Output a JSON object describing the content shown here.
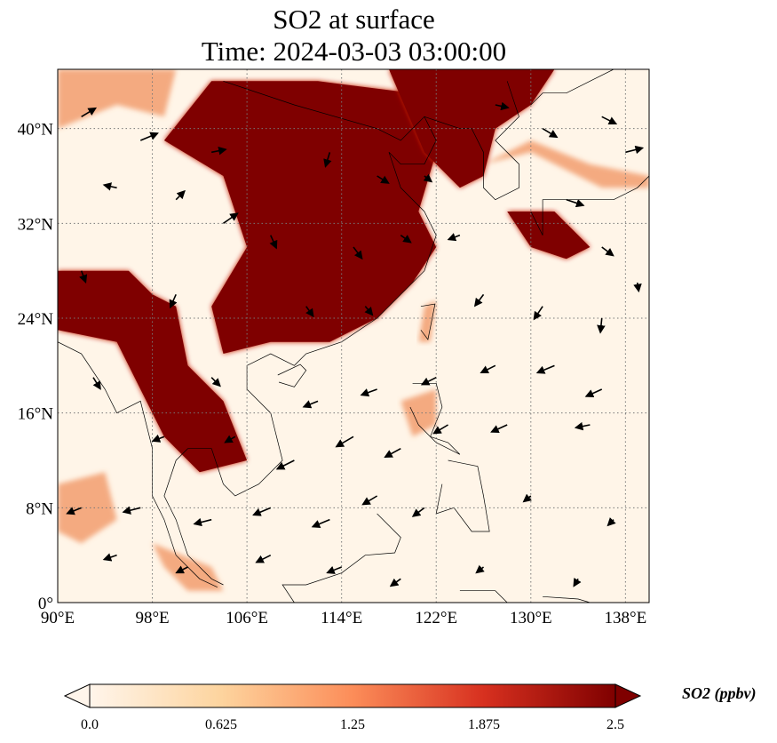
{
  "title": {
    "line1": "SO2 at surface",
    "line2": "Time: 2024-03-03 03:00:00"
  },
  "map": {
    "extent": {
      "lon": [
        90,
        140
      ],
      "lat": [
        0,
        45
      ]
    },
    "lon_ticks": [
      {
        "value": 90,
        "label": "90°E"
      },
      {
        "value": 98,
        "label": "98°E"
      },
      {
        "value": 106,
        "label": "106°E"
      },
      {
        "value": 114,
        "label": "114°E"
      },
      {
        "value": 122,
        "label": "122°E"
      },
      {
        "value": 130,
        "label": "130°E"
      },
      {
        "value": 138,
        "label": "138°E"
      }
    ],
    "lat_ticks": [
      {
        "value": 0,
        "label": "0°"
      },
      {
        "value": 8,
        "label": "8°N"
      },
      {
        "value": 16,
        "label": "16°N"
      },
      {
        "value": 24,
        "label": "24°N"
      },
      {
        "value": 32,
        "label": "32°N"
      },
      {
        "value": 40,
        "label": "40°N"
      }
    ],
    "gridlines": true,
    "colors": {
      "background": "#fff5e8",
      "low": "#fde0b8",
      "mid": "#f08a55",
      "high": "#c41a0c",
      "max": "#7f0000",
      "coast": "#000000"
    },
    "high_regions": [
      [
        [
          103,
          44
        ],
        [
          112,
          44
        ],
        [
          120,
          43
        ],
        [
          122,
          38
        ],
        [
          120.5,
          33
        ],
        [
          122,
          30
        ],
        [
          120,
          27
        ],
        [
          117,
          24
        ],
        [
          113,
          22
        ],
        [
          108,
          22
        ],
        [
          104,
          21
        ],
        [
          103,
          25
        ],
        [
          106,
          30
        ],
        [
          104,
          36
        ],
        [
          99,
          39
        ]
      ],
      [
        [
          90,
          28
        ],
        [
          96,
          28
        ],
        [
          98,
          26
        ],
        [
          100,
          25
        ],
        [
          101,
          20
        ],
        [
          104,
          17
        ],
        [
          106,
          12
        ],
        [
          102,
          11
        ],
        [
          99,
          14
        ],
        [
          97,
          18
        ],
        [
          95,
          22
        ],
        [
          90,
          23
        ]
      ],
      [
        [
          118,
          45
        ],
        [
          132,
          45
        ],
        [
          130,
          42
        ],
        [
          127,
          40
        ],
        [
          126,
          36
        ],
        [
          124,
          35
        ],
        [
          121,
          38
        ]
      ],
      [
        [
          128,
          33
        ],
        [
          132,
          33
        ],
        [
          135,
          30
        ],
        [
          133,
          29
        ],
        [
          130,
          30
        ]
      ]
    ],
    "mid_regions": [
      [
        [
          90,
          45
        ],
        [
          100,
          45
        ],
        [
          99,
          41
        ],
        [
          95,
          42
        ],
        [
          90,
          40
        ]
      ],
      [
        [
          126,
          37
        ],
        [
          130,
          38
        ],
        [
          136,
          35
        ],
        [
          140,
          35
        ],
        [
          140,
          36
        ],
        [
          135,
          37
        ],
        [
          130,
          39
        ]
      ],
      [
        [
          119,
          17
        ],
        [
          122,
          18
        ],
        [
          122,
          15
        ],
        [
          120,
          14
        ]
      ],
      [
        [
          98,
          5
        ],
        [
          103,
          3
        ],
        [
          104,
          1
        ],
        [
          101,
          1
        ],
        [
          99,
          3
        ]
      ],
      [
        [
          121,
          25
        ],
        [
          122,
          25.5
        ],
        [
          121.5,
          22
        ],
        [
          120.5,
          22
        ]
      ],
      [
        [
          90,
          10
        ],
        [
          94,
          11
        ],
        [
          95,
          7
        ],
        [
          92,
          5
        ],
        [
          90,
          6
        ]
      ]
    ],
    "coastlines": [
      [
        [
          104,
          44
        ],
        [
          110,
          42
        ],
        [
          117,
          40
        ],
        [
          119,
          39
        ],
        [
          121,
          41
        ],
        [
          122,
          39
        ],
        [
          121,
          37
        ],
        [
          119,
          37
        ],
        [
          118,
          38
        ],
        [
          119,
          35
        ],
        [
          121,
          33
        ],
        [
          122,
          31
        ],
        [
          121,
          28
        ],
        [
          119,
          26
        ],
        [
          117,
          24
        ],
        [
          114,
          22
        ],
        [
          111,
          21
        ],
        [
          110,
          20
        ],
        [
          108,
          21
        ],
        [
          106,
          20
        ],
        [
          106,
          18
        ],
        [
          108,
          16
        ],
        [
          109,
          12
        ],
        [
          107,
          10
        ],
        [
          105,
          9
        ],
        [
          104,
          10
        ],
        [
          103,
          13
        ],
        [
          101,
          13
        ],
        [
          100,
          12
        ],
        [
          99,
          9
        ],
        [
          100,
          7
        ],
        [
          101,
          4
        ],
        [
          103,
          2
        ],
        [
          104,
          1.5
        ]
      ],
      [
        [
          90,
          22
        ],
        [
          92,
          21
        ],
        [
          94,
          18
        ],
        [
          95,
          16
        ],
        [
          97,
          17
        ],
        [
          98,
          13
        ],
        [
          98,
          9
        ],
        [
          99,
          7
        ],
        [
          100,
          4
        ],
        [
          102,
          2
        ],
        [
          103.5,
          1.3
        ]
      ],
      [
        [
          128,
          44
        ],
        [
          129,
          41
        ],
        [
          127,
          39
        ],
        [
          129,
          37
        ],
        [
          129,
          35
        ],
        [
          127,
          34
        ],
        [
          126,
          35
        ],
        [
          126,
          38
        ],
        [
          125,
          40
        ],
        [
          124,
          40
        ],
        [
          121,
          41
        ]
      ],
      [
        [
          130,
          33
        ],
        [
          131,
          31
        ],
        [
          131,
          34
        ],
        [
          132,
          34
        ],
        [
          135,
          34
        ],
        [
          137,
          34
        ],
        [
          139,
          35
        ],
        [
          140,
          36
        ],
        [
          140,
          38
        ],
        [
          140,
          41
        ]
      ],
      [
        [
          130,
          42
        ],
        [
          131,
          43
        ],
        [
          133,
          43
        ],
        [
          135,
          44
        ],
        [
          137,
          45
        ]
      ]
    ],
    "islands": [
      [
        [
          120.7,
          25
        ],
        [
          121.9,
          25.2
        ],
        [
          121.3,
          22.2
        ],
        [
          120.7,
          23
        ]
      ],
      [
        [
          108.6,
          19.2
        ],
        [
          110.5,
          20.1
        ],
        [
          111,
          19.6
        ],
        [
          110,
          18.2
        ],
        [
          108.7,
          18.6
        ]
      ],
      [
        [
          120,
          18.5
        ],
        [
          122,
          18.5
        ],
        [
          122.5,
          16.5
        ],
        [
          121.5,
          14
        ],
        [
          123,
          13.5
        ],
        [
          124,
          12.5
        ],
        [
          122,
          13.5
        ],
        [
          120.5,
          15
        ],
        [
          119.8,
          16.5
        ]
      ],
      [
        [
          123,
          12
        ],
        [
          125.5,
          11.5
        ],
        [
          126,
          9
        ],
        [
          126.5,
          6
        ],
        [
          125,
          6
        ],
        [
          123.5,
          8
        ],
        [
          122,
          7.5
        ],
        [
          122.5,
          10
        ]
      ],
      [
        [
          117,
          7.5
        ],
        [
          119,
          5.5
        ],
        [
          118.5,
          4.2
        ],
        [
          116,
          4
        ],
        [
          114,
          2.5
        ],
        [
          111,
          1.5
        ],
        [
          109,
          1.5
        ],
        [
          110,
          0
        ]
      ],
      [
        [
          124,
          1
        ],
        [
          127,
          1
        ],
        [
          128,
          0
        ]
      ],
      [
        [
          131,
          0.5
        ],
        [
          134,
          0.3
        ],
        [
          135,
          0
        ]
      ]
    ],
    "wind_vectors": [
      [
        92,
        41,
        1,
        0.6
      ],
      [
        97,
        39,
        1.2,
        0.5
      ],
      [
        103,
        38,
        1,
        0.2
      ],
      [
        113,
        38,
        -0.3,
        -1
      ],
      [
        117,
        36,
        0.8,
        -0.5
      ],
      [
        121,
        36,
        0.5,
        -0.4
      ],
      [
        127,
        42,
        0.9,
        -0.2
      ],
      [
        131,
        40,
        1,
        -0.6
      ],
      [
        136,
        41,
        1,
        -0.5
      ],
      [
        138,
        38,
        1.2,
        0.3
      ],
      [
        95,
        35,
        -0.9,
        0.2
      ],
      [
        100,
        34,
        0.6,
        0.6
      ],
      [
        104,
        32,
        1,
        0.7
      ],
      [
        108,
        31,
        0.4,
        -0.9
      ],
      [
        115,
        30,
        0.6,
        -0.8
      ],
      [
        119,
        31,
        0.7,
        -0.5
      ],
      [
        124,
        31,
        -0.8,
        -0.3
      ],
      [
        133,
        34,
        1.2,
        -0.4
      ],
      [
        136,
        30,
        0.8,
        -0.6
      ],
      [
        92,
        28,
        0.3,
        -0.8
      ],
      [
        100,
        26,
        -0.4,
        -0.9
      ],
      [
        111,
        25,
        0.5,
        -0.7
      ],
      [
        116,
        25,
        0.5,
        -0.6
      ],
      [
        126,
        26,
        -0.6,
        -0.8
      ],
      [
        131,
        25,
        -0.6,
        -0.9
      ],
      [
        136,
        24,
        -0.1,
        -1
      ],
      [
        139,
        27,
        0.1,
        -0.6
      ],
      [
        93,
        19,
        0.5,
        -0.8
      ],
      [
        103,
        19,
        0.6,
        -0.6
      ],
      [
        112,
        17,
        -1,
        -0.4
      ],
      [
        117,
        18,
        -1.1,
        -0.4
      ],
      [
        122,
        19,
        -1,
        -0.5
      ],
      [
        127,
        20,
        -1,
        -0.5
      ],
      [
        132,
        20,
        -1.2,
        -0.5
      ],
      [
        136,
        18,
        -1.1,
        -0.5
      ],
      [
        99,
        14,
        -0.8,
        -0.3
      ],
      [
        105,
        14,
        -0.7,
        -0.4
      ],
      [
        110,
        12,
        -1.2,
        -0.6
      ],
      [
        115,
        14,
        -1.2,
        -0.7
      ],
      [
        119,
        13,
        -1.1,
        -0.6
      ],
      [
        123,
        15,
        -1,
        -0.6
      ],
      [
        128,
        15,
        -1.1,
        -0.5
      ],
      [
        135,
        15,
        -1,
        -0.2
      ],
      [
        92,
        8,
        -1,
        -0.4
      ],
      [
        97,
        8,
        -1.2,
        -0.3
      ],
      [
        103,
        7,
        -1.2,
        -0.3
      ],
      [
        108,
        8,
        -1.2,
        -0.5
      ],
      [
        113,
        7,
        -1.2,
        -0.5
      ],
      [
        117,
        9,
        -1,
        -0.6
      ],
      [
        121,
        8,
        -0.8,
        -0.6
      ],
      [
        130,
        9,
        -0.5,
        -0.4
      ],
      [
        137,
        7,
        -0.4,
        -0.4
      ],
      [
        95,
        4,
        -0.9,
        -0.3
      ],
      [
        101,
        3,
        -0.8,
        -0.4
      ],
      [
        108,
        4,
        -1,
        -0.5
      ],
      [
        114,
        3,
        -1,
        -0.4
      ],
      [
        119,
        2,
        -0.7,
        -0.5
      ],
      [
        126,
        3,
        -0.5,
        -0.4
      ],
      [
        134,
        2,
        -0.3,
        -0.5
      ]
    ]
  },
  "colorbar": {
    "label": "SO2 (ppbv)",
    "ticks": [
      {
        "value": 0.0,
        "label": "0.0"
      },
      {
        "value": 0.625,
        "label": "0.625"
      },
      {
        "value": 1.25,
        "label": "1.25"
      },
      {
        "value": 1.875,
        "label": "1.875"
      },
      {
        "value": 2.5,
        "label": "2.5"
      }
    ],
    "range": [
      0,
      2.5
    ],
    "extend": "both",
    "stops": [
      "#fff5eb",
      "#fdd49e",
      "#fc8d59",
      "#d7301f",
      "#7f0000"
    ]
  }
}
